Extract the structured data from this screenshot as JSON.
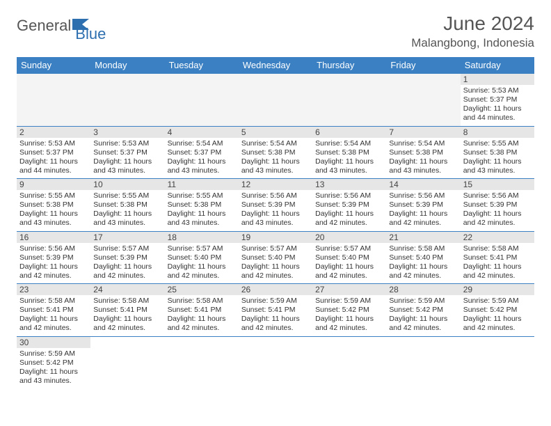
{
  "brand": {
    "part1": "General",
    "part2": "Blue"
  },
  "title": "June 2024",
  "location": "Malangbong, Indonesia",
  "colors": {
    "header_bg": "#3b80c2",
    "header_text": "#ffffff",
    "daynum_bg": "#e6e6e6",
    "border": "#3b80c2",
    "brand_blue": "#2e6fb0",
    "text": "#333333"
  },
  "calendar": {
    "type": "table",
    "columns": [
      "Sunday",
      "Monday",
      "Tuesday",
      "Wednesday",
      "Thursday",
      "Friday",
      "Saturday"
    ],
    "start_day_index": 6,
    "days": [
      {
        "n": 1,
        "sunrise": "5:53 AM",
        "sunset": "5:37 PM",
        "daylight": "11 hours and 44 minutes."
      },
      {
        "n": 2,
        "sunrise": "5:53 AM",
        "sunset": "5:37 PM",
        "daylight": "11 hours and 44 minutes."
      },
      {
        "n": 3,
        "sunrise": "5:53 AM",
        "sunset": "5:37 PM",
        "daylight": "11 hours and 43 minutes."
      },
      {
        "n": 4,
        "sunrise": "5:54 AM",
        "sunset": "5:37 PM",
        "daylight": "11 hours and 43 minutes."
      },
      {
        "n": 5,
        "sunrise": "5:54 AM",
        "sunset": "5:38 PM",
        "daylight": "11 hours and 43 minutes."
      },
      {
        "n": 6,
        "sunrise": "5:54 AM",
        "sunset": "5:38 PM",
        "daylight": "11 hours and 43 minutes."
      },
      {
        "n": 7,
        "sunrise": "5:54 AM",
        "sunset": "5:38 PM",
        "daylight": "11 hours and 43 minutes."
      },
      {
        "n": 8,
        "sunrise": "5:55 AM",
        "sunset": "5:38 PM",
        "daylight": "11 hours and 43 minutes."
      },
      {
        "n": 9,
        "sunrise": "5:55 AM",
        "sunset": "5:38 PM",
        "daylight": "11 hours and 43 minutes."
      },
      {
        "n": 10,
        "sunrise": "5:55 AM",
        "sunset": "5:38 PM",
        "daylight": "11 hours and 43 minutes."
      },
      {
        "n": 11,
        "sunrise": "5:55 AM",
        "sunset": "5:38 PM",
        "daylight": "11 hours and 43 minutes."
      },
      {
        "n": 12,
        "sunrise": "5:56 AM",
        "sunset": "5:39 PM",
        "daylight": "11 hours and 43 minutes."
      },
      {
        "n": 13,
        "sunrise": "5:56 AM",
        "sunset": "5:39 PM",
        "daylight": "11 hours and 42 minutes."
      },
      {
        "n": 14,
        "sunrise": "5:56 AM",
        "sunset": "5:39 PM",
        "daylight": "11 hours and 42 minutes."
      },
      {
        "n": 15,
        "sunrise": "5:56 AM",
        "sunset": "5:39 PM",
        "daylight": "11 hours and 42 minutes."
      },
      {
        "n": 16,
        "sunrise": "5:56 AM",
        "sunset": "5:39 PM",
        "daylight": "11 hours and 42 minutes."
      },
      {
        "n": 17,
        "sunrise": "5:57 AM",
        "sunset": "5:39 PM",
        "daylight": "11 hours and 42 minutes."
      },
      {
        "n": 18,
        "sunrise": "5:57 AM",
        "sunset": "5:40 PM",
        "daylight": "11 hours and 42 minutes."
      },
      {
        "n": 19,
        "sunrise": "5:57 AM",
        "sunset": "5:40 PM",
        "daylight": "11 hours and 42 minutes."
      },
      {
        "n": 20,
        "sunrise": "5:57 AM",
        "sunset": "5:40 PM",
        "daylight": "11 hours and 42 minutes."
      },
      {
        "n": 21,
        "sunrise": "5:58 AM",
        "sunset": "5:40 PM",
        "daylight": "11 hours and 42 minutes."
      },
      {
        "n": 22,
        "sunrise": "5:58 AM",
        "sunset": "5:41 PM",
        "daylight": "11 hours and 42 minutes."
      },
      {
        "n": 23,
        "sunrise": "5:58 AM",
        "sunset": "5:41 PM",
        "daylight": "11 hours and 42 minutes."
      },
      {
        "n": 24,
        "sunrise": "5:58 AM",
        "sunset": "5:41 PM",
        "daylight": "11 hours and 42 minutes."
      },
      {
        "n": 25,
        "sunrise": "5:58 AM",
        "sunset": "5:41 PM",
        "daylight": "11 hours and 42 minutes."
      },
      {
        "n": 26,
        "sunrise": "5:59 AM",
        "sunset": "5:41 PM",
        "daylight": "11 hours and 42 minutes."
      },
      {
        "n": 27,
        "sunrise": "5:59 AM",
        "sunset": "5:42 PM",
        "daylight": "11 hours and 42 minutes."
      },
      {
        "n": 28,
        "sunrise": "5:59 AM",
        "sunset": "5:42 PM",
        "daylight": "11 hours and 42 minutes."
      },
      {
        "n": 29,
        "sunrise": "5:59 AM",
        "sunset": "5:42 PM",
        "daylight": "11 hours and 42 minutes."
      },
      {
        "n": 30,
        "sunrise": "5:59 AM",
        "sunset": "5:42 PM",
        "daylight": "11 hours and 43 minutes."
      }
    ],
    "labels": {
      "sunrise": "Sunrise:",
      "sunset": "Sunset:",
      "daylight": "Daylight:"
    },
    "font": {
      "header_size": 13,
      "daynum_size": 12,
      "body_size": 10.5
    }
  }
}
